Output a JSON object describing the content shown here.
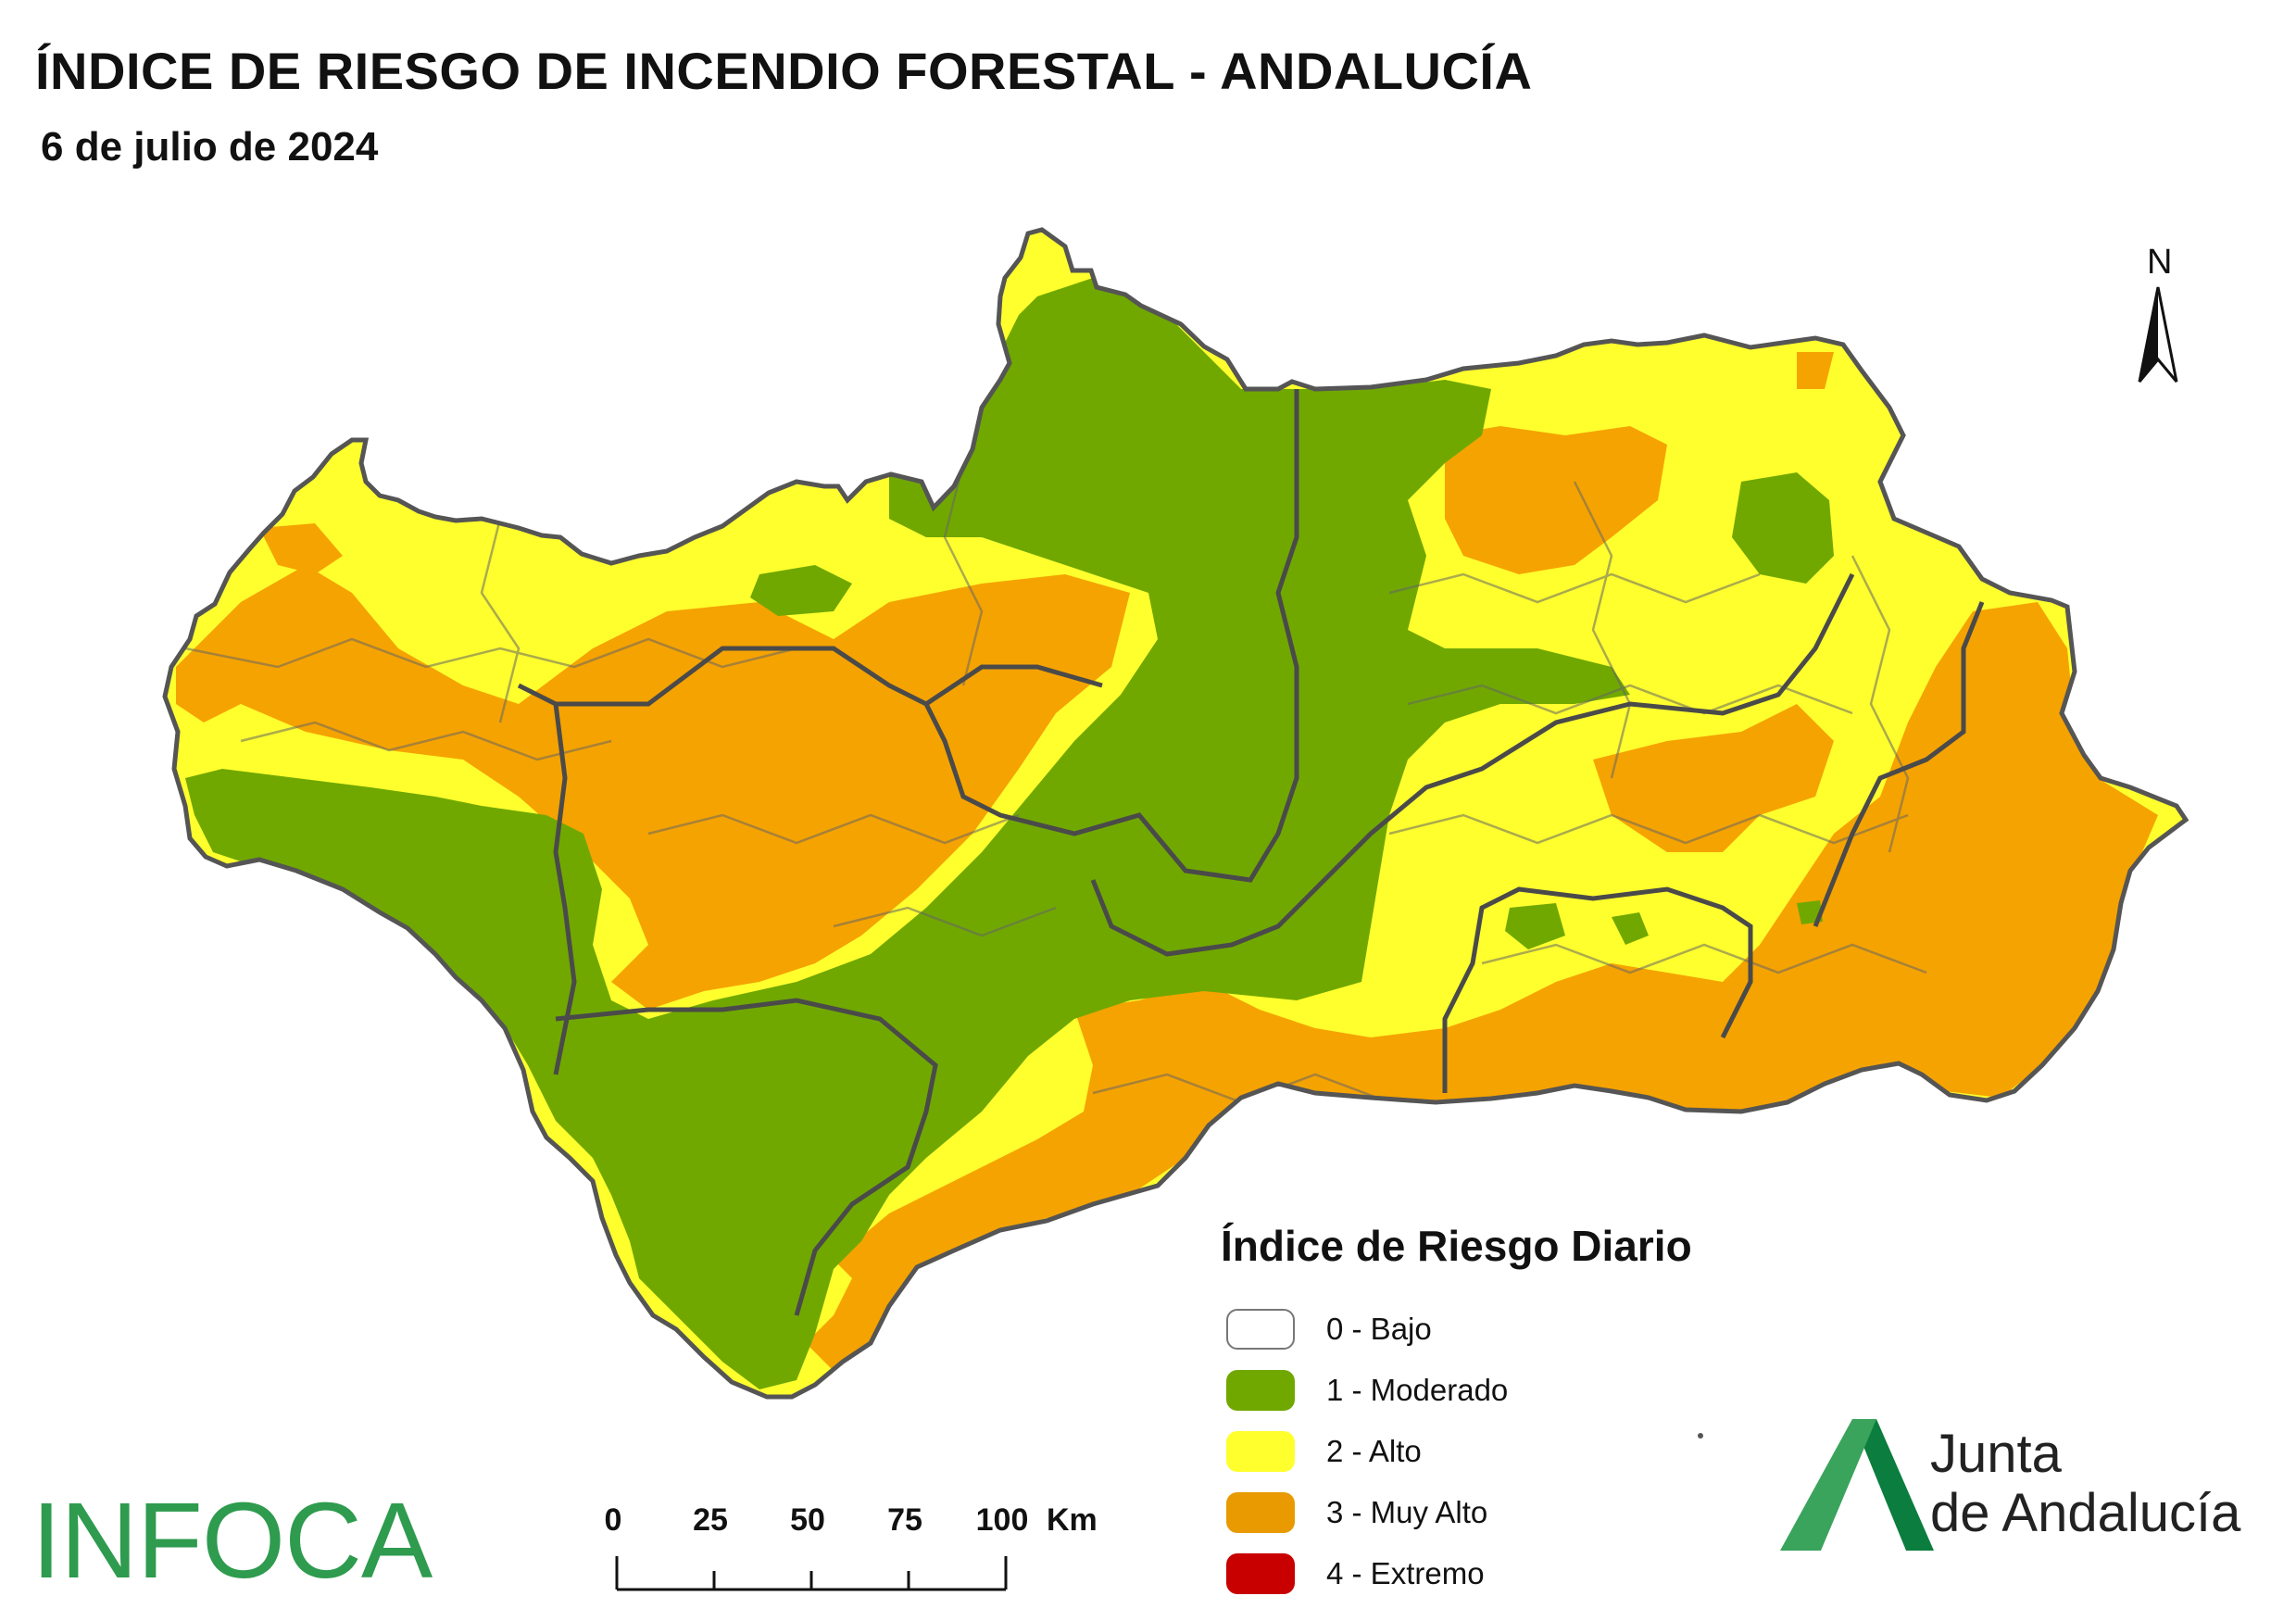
{
  "header": {
    "title": "ÍNDICE DE RIESGO DE INCENDIO FORESTAL - ANDALUCÍA",
    "subtitle": "6 de julio de 2024"
  },
  "north_arrow": {
    "label": "N"
  },
  "legend": {
    "title": "Índice de Riesgo Diario",
    "items": [
      {
        "label": "0 - Bajo",
        "color": "#ffffff"
      },
      {
        "label": "1 - Moderado",
        "color": "#70a800"
      },
      {
        "label": "2 - Alto",
        "color": "#ffff2e"
      },
      {
        "label": "3 - Muy Alto",
        "color": "#f5a300"
      },
      {
        "label": "4 - Extremo",
        "color": "#c80000"
      }
    ]
  },
  "scale_bar": {
    "ticks": [
      "0",
      "25",
      "50",
      "75",
      "100"
    ],
    "unit": "Km"
  },
  "logos": {
    "infoca": "INFOCA",
    "junta_line1": "Junta",
    "junta_line2": "de Andalucía"
  },
  "colors": {
    "moderado": "#70a800",
    "alto": "#ffff2e",
    "muy_alto": "#f5a300",
    "border": "#555555",
    "brand_green": "#2e9b4e"
  }
}
